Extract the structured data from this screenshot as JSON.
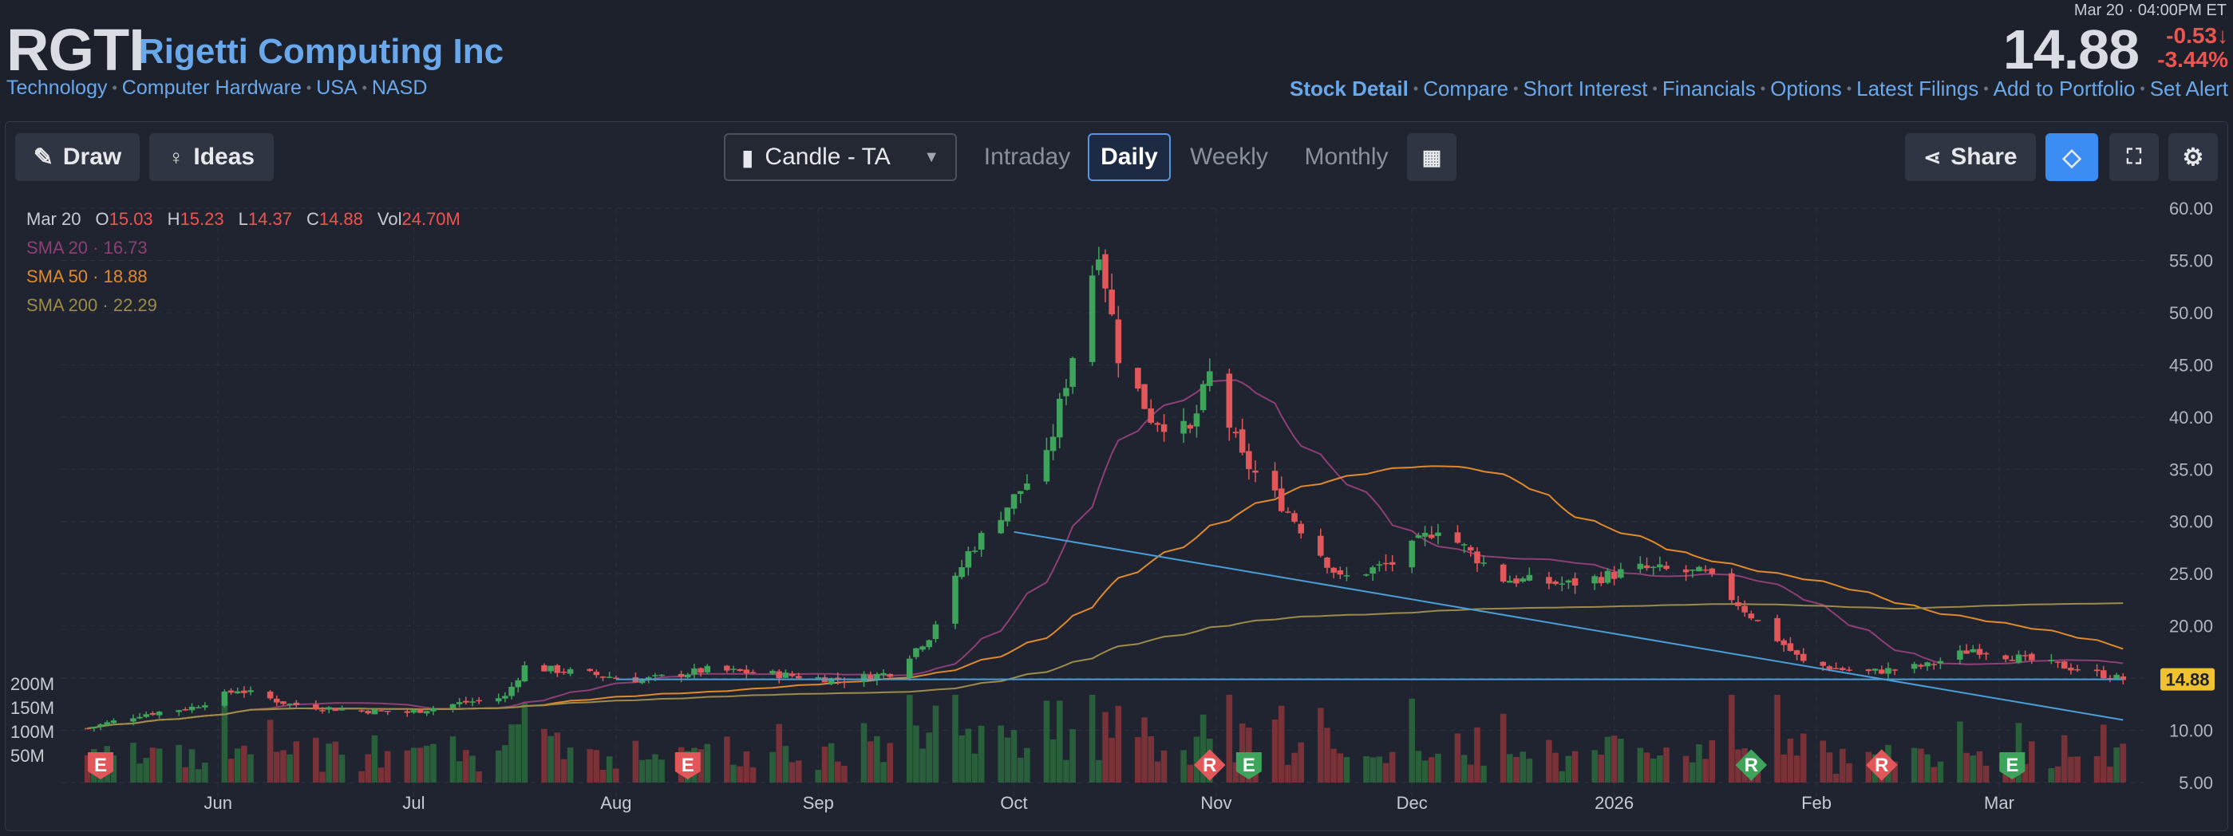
{
  "header": {
    "ticker": "RGTI",
    "company": "Rigetti Computing Inc",
    "tags": [
      "Technology",
      "Computer Hardware",
      "USA",
      "NASD"
    ],
    "time": "Mar 20 · 04:00PM ET",
    "price": "14.88",
    "change": "-0.53↓",
    "change_pct": "-3.44%",
    "links": [
      "Stock Detail",
      "Compare",
      "Short Interest",
      "Financials",
      "Options",
      "Latest Filings",
      "Add to Portfolio",
      "Set Alert"
    ]
  },
  "toolbar": {
    "draw": "Draw",
    "ideas": "Ideas",
    "chart_type": "Candle - TA",
    "intraday": "Intraday",
    "daily": "Daily",
    "weekly": "Weekly",
    "monthly": "Monthly",
    "share": "Share"
  },
  "legend": {
    "date": "Mar 20",
    "o_label": "O",
    "o": "15.03",
    "h_label": "H",
    "h": "15.23",
    "l_label": "L",
    "l": "14.37",
    "c_label": "C",
    "c": "14.88",
    "vol_label": "Vol",
    "vol": "24.70M",
    "sma20": "SMA 20 · 16.73",
    "sma50": "SMA 50 · 18.88",
    "sma200": "SMA 200 · 22.29"
  },
  "colors": {
    "up": "#3fa45b",
    "down": "#e2575a",
    "sma20": "#8e3f76",
    "sma50": "#e08a2c",
    "sma200": "#9c8b4a",
    "trend": "#4a9fd8"
  },
  "chart_data": {
    "type": "candlestick",
    "x_ticks": [
      "Jun",
      "Jul",
      "Aug",
      "Sep",
      "Oct",
      "Nov",
      "Dec",
      "2026",
      "Feb",
      "Mar"
    ],
    "y_ticks": [
      "60.00",
      "55.00",
      "50.00",
      "45.00",
      "40.00",
      "35.00",
      "30.00",
      "25.00",
      "20.00",
      "15.00",
      "10.00",
      "5.00"
    ],
    "ylim": [
      5,
      60
    ],
    "volume_ticks": [
      "200M",
      "150M",
      "100M",
      "50M"
    ],
    "last_price_label": "14.88",
    "close_path": [
      {
        "date": "2025-05-12",
        "close": 10.2
      },
      {
        "date": "2025-05-20",
        "close": 11.5
      },
      {
        "date": "2025-05-28",
        "close": 12.2
      },
      {
        "date": "2025-06-04",
        "close": 13.9
      },
      {
        "date": "2025-06-12",
        "close": 12.5
      },
      {
        "date": "2025-06-20",
        "close": 12.0
      },
      {
        "date": "2025-06-30",
        "close": 11.7
      },
      {
        "date": "2025-07-08",
        "close": 12.6
      },
      {
        "date": "2025-07-15",
        "close": 13.2
      },
      {
        "date": "2025-07-18",
        "close": 16.1
      },
      {
        "date": "2025-07-25",
        "close": 15.6
      },
      {
        "date": "2025-08-05",
        "close": 14.8
      },
      {
        "date": "2025-08-15",
        "close": 15.8
      },
      {
        "date": "2025-08-25",
        "close": 15.4
      },
      {
        "date": "2025-09-05",
        "close": 14.8
      },
      {
        "date": "2025-09-12",
        "close": 15.5
      },
      {
        "date": "2025-09-18",
        "close": 19.0
      },
      {
        "date": "2025-09-24",
        "close": 27.0
      },
      {
        "date": "2025-09-30",
        "close": 31.5
      },
      {
        "date": "2025-10-06",
        "close": 36.0
      },
      {
        "date": "2025-10-10",
        "close": 46.0
      },
      {
        "date": "2025-10-14",
        "close": 56.5
      },
      {
        "date": "2025-10-17",
        "close": 46.0
      },
      {
        "date": "2025-10-22",
        "close": 40.0
      },
      {
        "date": "2025-10-28",
        "close": 38.5
      },
      {
        "date": "2025-10-31",
        "close": 44.0
      },
      {
        "date": "2025-11-05",
        "close": 36.0
      },
      {
        "date": "2025-11-12",
        "close": 31.0
      },
      {
        "date": "2025-11-20",
        "close": 24.5
      },
      {
        "date": "2025-11-28",
        "close": 26.0
      },
      {
        "date": "2025-12-05",
        "close": 29.5
      },
      {
        "date": "2025-12-15",
        "close": 24.5
      },
      {
        "date": "2025-12-25",
        "close": 24.0
      },
      {
        "date": "2026-01-05",
        "close": 25.5
      },
      {
        "date": "2026-01-15",
        "close": 25.0
      },
      {
        "date": "2026-01-22",
        "close": 21.0
      },
      {
        "date": "2026-01-30",
        "close": 16.5
      },
      {
        "date": "2026-02-08",
        "close": 15.5
      },
      {
        "date": "2026-02-18",
        "close": 16.2
      },
      {
        "date": "2026-02-25",
        "close": 17.8
      },
      {
        "date": "2026-03-05",
        "close": 16.8
      },
      {
        "date": "2026-03-12",
        "close": 16.0
      },
      {
        "date": "2026-03-20",
        "close": 14.88
      }
    ],
    "series": [
      {
        "name": "SMA 20",
        "last": 16.73
      },
      {
        "name": "SMA 50",
        "last": 18.88
      },
      {
        "name": "SMA 200",
        "last": 22.29
      }
    ],
    "trendlines": [
      {
        "from": {
          "date": "2025-10-01",
          "price": 29.0
        },
        "to": {
          "date": "2026-03-20",
          "price": 11.0
        }
      },
      {
        "from": {
          "date": "2025-08-01",
          "price": 14.88
        },
        "to": {
          "date": "2026-03-20",
          "price": 14.88
        }
      }
    ],
    "events": [
      {
        "label": "E",
        "date": "2025-05-14",
        "kind": "down"
      },
      {
        "label": "E",
        "date": "2025-08-12",
        "kind": "down"
      },
      {
        "label": "R",
        "date": "2025-10-31",
        "kind": "down"
      },
      {
        "label": "E",
        "date": "2025-11-06",
        "kind": "up"
      },
      {
        "label": "R",
        "date": "2026-01-22",
        "kind": "up"
      },
      {
        "label": "R",
        "date": "2026-02-11",
        "kind": "down"
      },
      {
        "label": "E",
        "date": "2026-03-03",
        "kind": "up"
      }
    ]
  }
}
